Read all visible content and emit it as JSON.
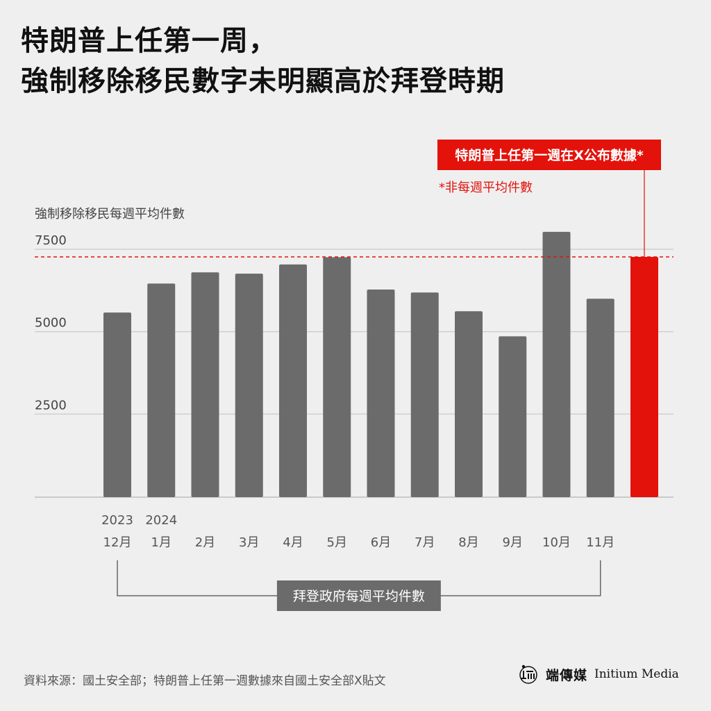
{
  "title": {
    "line1": "特朗普上任第一周，",
    "line2": "強制移除移民數字未明顯高於拜登時期"
  },
  "chart_data": {
    "type": "bar",
    "ylabel": "強制移除移民每週平均件數",
    "ylim": [
      0,
      7500
    ],
    "yticks": [
      "7500",
      "5000",
      "2500"
    ],
    "ytick_values": [
      7500,
      5000,
      2500
    ],
    "grid": true,
    "year_labels": [
      {
        "label": "2023",
        "category_index": 0
      },
      {
        "label": "2024",
        "category_index": 1
      }
    ],
    "categories": [
      "12月",
      "1月",
      "2月",
      "3月",
      "4月",
      "5月",
      "6月",
      "7月",
      "8月",
      "9月",
      "10月",
      "11月",
      ""
    ],
    "values": [
      5600,
      6480,
      6820,
      6780,
      7060,
      7280,
      6300,
      6210,
      5640,
      4880,
      8050,
      6020,
      7290
    ],
    "highlight_index": 12,
    "reference_line": 7290,
    "annotations": {
      "highlight_label": "特朗普上任第一週在X公布數據*",
      "highlight_note": "*非每週平均件數",
      "bracket_label": "拜登政府每週平均件數"
    },
    "colors": {
      "bar": "#6b6b6b",
      "highlight": "#e3120b",
      "reference_line": "#e3120b",
      "grid": "#cfcfcf",
      "background": "#efefef"
    }
  },
  "source": "資料來源：國土安全部；特朗普上任第一週數據來自國土安全部X貼文",
  "brand": {
    "chinese": "端傳媒",
    "english": "Initium Media"
  }
}
